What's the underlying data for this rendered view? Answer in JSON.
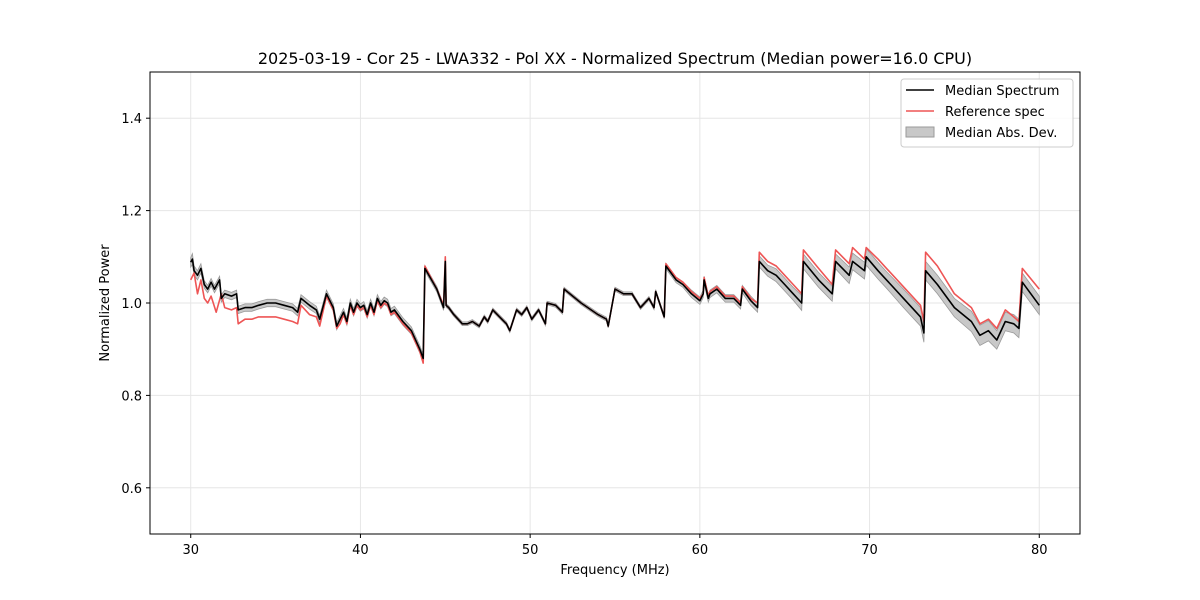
{
  "chart_data": {
    "type": "line",
    "title": "2025-03-19 - Cor 25 - LWA332 - Pol XX - Normalized Spectrum (Median power=16.0 CPU)",
    "xlabel": "Frequency (MHz)",
    "ylabel": "Normalized Power",
    "xlim": [
      27.6,
      82.4
    ],
    "ylim": [
      0.5,
      1.5
    ],
    "xticks": [
      30,
      40,
      50,
      60,
      70,
      80
    ],
    "yticks": [
      0.6,
      0.8,
      1.0,
      1.2,
      1.4
    ],
    "grid": true,
    "legend_position": "top-right",
    "legend": [
      "Median Spectrum",
      "Reference spec",
      "Median Abs. Dev."
    ],
    "colors": {
      "median": "#000000",
      "reference": "#ee5555",
      "mad_fill": "#c8c8c8",
      "mad_edge": "#9a9a9a"
    },
    "series": [
      {
        "name": "Median Spectrum",
        "x": [
          30.0,
          30.1,
          30.2,
          30.4,
          30.6,
          30.8,
          31.0,
          31.2,
          31.4,
          31.7,
          31.8,
          32.0,
          32.4,
          32.7,
          32.8,
          33.2,
          33.6,
          34.0,
          34.5,
          35.0,
          35.5,
          36.0,
          36.3,
          36.5,
          37.0,
          37.4,
          37.6,
          38.0,
          38.4,
          38.6,
          38.8,
          39.0,
          39.2,
          39.4,
          39.6,
          39.8,
          40.0,
          40.2,
          40.4,
          40.6,
          40.8,
          41.0,
          41.2,
          41.4,
          41.6,
          41.8,
          42.0,
          42.5,
          43.0,
          43.5,
          43.7,
          43.8,
          44.5,
          44.9,
          45.0,
          45.05,
          45.2,
          45.5,
          46.0,
          46.3,
          46.6,
          47.0,
          47.3,
          47.5,
          47.8,
          48.2,
          48.6,
          48.8,
          49.2,
          49.5,
          49.8,
          50.1,
          50.5,
          50.9,
          51.0,
          51.5,
          51.9,
          52.0,
          53.0,
          54.0,
          54.5,
          54.6,
          55.0,
          55.5,
          56.0,
          56.5,
          57.0,
          57.3,
          57.4,
          57.9,
          58.0,
          58.6,
          59.0,
          59.5,
          60.0,
          60.2,
          60.25,
          60.5,
          60.6,
          61.0,
          61.5,
          62.0,
          62.4,
          62.5,
          63.0,
          63.4,
          63.5,
          64.0,
          64.5,
          65.0,
          65.5,
          66.0,
          66.1,
          67.0,
          67.8,
          68.0,
          68.8,
          69.0,
          69.7,
          69.8,
          70.5,
          71.0,
          72.0,
          73.0,
          73.2,
          73.3,
          74.0,
          75.0,
          76.0,
          76.5,
          77.0,
          77.5,
          78.0,
          78.5,
          78.8,
          79.0,
          80.0
        ],
        "values": [
          1.088,
          1.095,
          1.07,
          1.06,
          1.075,
          1.04,
          1.03,
          1.045,
          1.03,
          1.05,
          1.01,
          1.02,
          1.015,
          1.02,
          0.985,
          0.99,
          0.99,
          0.995,
          1.0,
          1.0,
          0.995,
          0.99,
          0.98,
          1.01,
          0.995,
          0.985,
          0.965,
          1.02,
          0.99,
          0.95,
          0.965,
          0.98,
          0.96,
          1.0,
          0.98,
          1.0,
          0.99,
          0.995,
          0.975,
          1.0,
          0.98,
          1.01,
          0.995,
          1.005,
          1.0,
          0.98,
          0.985,
          0.96,
          0.94,
          0.9,
          0.88,
          1.075,
          1.03,
          0.99,
          1.09,
          0.995,
          0.99,
          0.975,
          0.955,
          0.955,
          0.96,
          0.95,
          0.97,
          0.96,
          0.985,
          0.97,
          0.955,
          0.94,
          0.985,
          0.975,
          0.99,
          0.965,
          0.985,
          0.955,
          1.0,
          0.995,
          0.98,
          1.03,
          1.0,
          0.975,
          0.965,
          0.95,
          1.03,
          1.02,
          1.02,
          0.99,
          1.01,
          0.99,
          1.025,
          0.97,
          1.08,
          1.05,
          1.04,
          1.02,
          1.005,
          1.02,
          1.05,
          1.01,
          1.02,
          1.03,
          1.01,
          1.01,
          0.995,
          1.03,
          1.005,
          0.99,
          1.09,
          1.07,
          1.06,
          1.04,
          1.02,
          1.0,
          1.09,
          1.05,
          1.02,
          1.09,
          1.06,
          1.09,
          1.07,
          1.1,
          1.07,
          1.05,
          1.01,
          0.97,
          0.935,
          1.07,
          1.04,
          0.99,
          0.96,
          0.93,
          0.94,
          0.92,
          0.96,
          0.955,
          0.945,
          1.045,
          0.995
        ]
      },
      {
        "name": "Reference spec",
        "x": [
          30.0,
          30.2,
          30.4,
          30.6,
          30.8,
          31.0,
          31.2,
          31.5,
          31.8,
          32.0,
          32.4,
          32.7,
          32.8,
          33.2,
          33.6,
          34.0,
          34.5,
          35.0,
          35.5,
          36.0,
          36.3,
          36.5,
          37.0,
          37.4,
          37.6,
          38.0,
          38.4,
          38.6,
          38.8,
          39.0,
          39.2,
          39.4,
          39.6,
          39.8,
          40.0,
          40.2,
          40.4,
          40.6,
          40.8,
          41.0,
          41.2,
          41.4,
          41.6,
          41.8,
          42.0,
          42.5,
          43.0,
          43.5,
          43.7,
          43.8,
          44.5,
          44.9,
          45.0,
          45.05,
          45.2,
          45.5,
          46.0,
          46.3,
          46.6,
          47.0,
          47.3,
          47.5,
          47.8,
          48.2,
          48.6,
          48.8,
          49.2,
          49.5,
          49.8,
          50.1,
          50.5,
          50.9,
          51.0,
          51.5,
          51.9,
          52.0,
          53.0,
          54.0,
          54.5,
          54.6,
          55.0,
          55.5,
          56.0,
          56.5,
          57.0,
          57.3,
          57.4,
          57.9,
          58.0,
          58.6,
          59.0,
          59.5,
          60.0,
          60.2,
          60.25,
          60.5,
          60.6,
          61.0,
          61.5,
          62.0,
          62.4,
          62.5,
          63.0,
          63.4,
          63.5,
          64.0,
          64.5,
          65.0,
          65.5,
          66.0,
          66.1,
          67.0,
          67.8,
          68.0,
          68.8,
          69.0,
          69.7,
          69.8,
          70.5,
          71.0,
          72.0,
          73.0,
          73.2,
          73.3,
          74.0,
          75.0,
          76.0,
          76.5,
          77.0,
          77.5,
          78.0,
          78.5,
          78.8,
          79.0,
          80.0
        ],
        "values": [
          1.05,
          1.065,
          1.02,
          1.05,
          1.01,
          1.0,
          1.015,
          0.98,
          1.02,
          0.99,
          0.985,
          0.99,
          0.955,
          0.965,
          0.965,
          0.97,
          0.97,
          0.97,
          0.965,
          0.96,
          0.955,
          0.995,
          0.975,
          0.97,
          0.95,
          1.015,
          0.985,
          0.945,
          0.955,
          0.975,
          0.955,
          0.995,
          0.975,
          0.995,
          0.985,
          0.99,
          0.97,
          0.995,
          0.975,
          1.005,
          0.99,
          1.0,
          0.995,
          0.975,
          0.98,
          0.955,
          0.935,
          0.895,
          0.87,
          1.08,
          1.03,
          0.995,
          1.1,
          0.995,
          0.99,
          0.975,
          0.955,
          0.955,
          0.96,
          0.95,
          0.97,
          0.96,
          0.985,
          0.97,
          0.955,
          0.94,
          0.985,
          0.975,
          0.99,
          0.965,
          0.985,
          0.955,
          1.0,
          0.995,
          0.98,
          1.03,
          1.0,
          0.975,
          0.965,
          0.95,
          1.03,
          1.02,
          1.02,
          0.99,
          1.01,
          0.99,
          1.025,
          0.97,
          1.085,
          1.055,
          1.045,
          1.025,
          1.01,
          1.02,
          1.055,
          1.015,
          1.025,
          1.035,
          1.015,
          1.015,
          1.0,
          1.035,
          1.01,
          1.0,
          1.11,
          1.09,
          1.08,
          1.06,
          1.04,
          1.02,
          1.115,
          1.075,
          1.04,
          1.115,
          1.085,
          1.12,
          1.095,
          1.12,
          1.095,
          1.075,
          1.035,
          0.995,
          0.96,
          1.11,
          1.08,
          1.02,
          0.99,
          0.955,
          0.965,
          0.945,
          0.985,
          0.97,
          0.96,
          1.075,
          1.03
        ]
      },
      {
        "name": "Median Abs. Dev.",
        "x": [
          30.0,
          30.1,
          30.2,
          30.4,
          30.6,
          30.8,
          31.0,
          31.2,
          31.4,
          31.7,
          31.8,
          32.0,
          32.4,
          32.7,
          32.8,
          33.2,
          33.6,
          34.0,
          34.5,
          35.0,
          35.5,
          36.0,
          36.3,
          36.5,
          37.0,
          37.4,
          37.6,
          38.0,
          38.4,
          38.6,
          38.8,
          39.0,
          39.2,
          39.4,
          39.6,
          39.8,
          40.0,
          40.2,
          40.4,
          40.6,
          40.8,
          41.0,
          41.2,
          41.4,
          41.6,
          41.8,
          42.0,
          42.5,
          43.0,
          43.5,
          43.7,
          43.8,
          44.5,
          44.9,
          45.0,
          45.05,
          45.2,
          45.5,
          46.0,
          46.3,
          46.6,
          47.0,
          47.3,
          47.5,
          47.8,
          48.2,
          48.6,
          48.8,
          49.2,
          49.5,
          49.8,
          50.1,
          50.5,
          50.9,
          51.0,
          51.5,
          51.9,
          52.0,
          53.0,
          54.0,
          54.5,
          54.6,
          55.0,
          55.5,
          56.0,
          56.5,
          57.0,
          57.3,
          57.4,
          57.9,
          58.0,
          58.6,
          59.0,
          59.5,
          60.0,
          60.2,
          60.25,
          60.5,
          60.6,
          61.0,
          61.5,
          62.0,
          62.4,
          62.5,
          63.0,
          63.4,
          63.5,
          64.0,
          64.5,
          65.0,
          65.5,
          66.0,
          66.1,
          67.0,
          67.8,
          68.0,
          68.8,
          69.0,
          69.7,
          69.8,
          70.5,
          71.0,
          72.0,
          73.0,
          73.2,
          73.3,
          74.0,
          75.0,
          76.0,
          76.5,
          77.0,
          77.5,
          78.0,
          78.5,
          78.8,
          79.0,
          80.0
        ],
        "half_width": [
          0.01,
          0.012,
          0.01,
          0.01,
          0.01,
          0.008,
          0.008,
          0.008,
          0.008,
          0.008,
          0.008,
          0.008,
          0.008,
          0.008,
          0.008,
          0.008,
          0.008,
          0.008,
          0.008,
          0.008,
          0.008,
          0.008,
          0.008,
          0.008,
          0.008,
          0.008,
          0.008,
          0.008,
          0.008,
          0.008,
          0.008,
          0.008,
          0.008,
          0.008,
          0.008,
          0.008,
          0.008,
          0.008,
          0.008,
          0.008,
          0.008,
          0.008,
          0.008,
          0.008,
          0.008,
          0.008,
          0.008,
          0.008,
          0.008,
          0.008,
          0.008,
          0.006,
          0.006,
          0.006,
          0.006,
          0.004,
          0.004,
          0.004,
          0.004,
          0.004,
          0.004,
          0.004,
          0.004,
          0.004,
          0.004,
          0.004,
          0.004,
          0.004,
          0.004,
          0.004,
          0.004,
          0.004,
          0.004,
          0.004,
          0.004,
          0.004,
          0.004,
          0.004,
          0.004,
          0.004,
          0.004,
          0.004,
          0.004,
          0.004,
          0.004,
          0.004,
          0.004,
          0.004,
          0.004,
          0.004,
          0.006,
          0.006,
          0.006,
          0.008,
          0.008,
          0.008,
          0.008,
          0.008,
          0.008,
          0.008,
          0.008,
          0.008,
          0.008,
          0.008,
          0.01,
          0.01,
          0.012,
          0.012,
          0.014,
          0.014,
          0.014,
          0.016,
          0.016,
          0.016,
          0.016,
          0.016,
          0.018,
          0.018,
          0.018,
          0.018,
          0.018,
          0.018,
          0.02,
          0.02,
          0.02,
          0.02,
          0.02,
          0.02,
          0.022,
          0.022,
          0.022,
          0.02,
          0.02,
          0.02,
          0.02,
          0.02,
          0.02
        ]
      }
    ]
  }
}
